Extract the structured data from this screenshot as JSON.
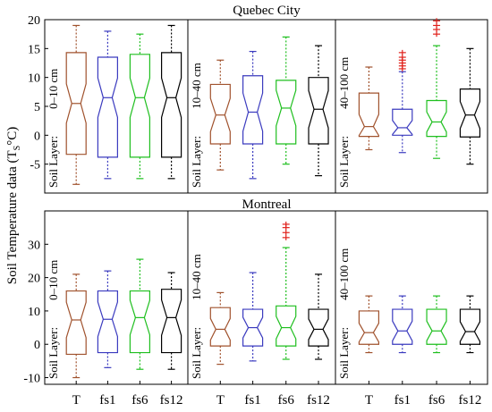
{
  "figure": {
    "ylabel": "Soil Temperature data (T",
    "ylabel_sub": "S",
    "ylabel_unit": "°C)",
    "categories": [
      "T",
      "fs1",
      "fs6",
      "fs12"
    ],
    "colors": {
      "T": "#a0522d",
      "fs1": "#3b3bbf",
      "fs6": "#1fbf1f",
      "fs12": "#000000",
      "outlier": "#e0201a"
    }
  },
  "chart_data": [
    {
      "type": "boxplot",
      "city": "Quebec City",
      "layer_prefix": "Soil Layer:",
      "layer": "0–10 cm",
      "ylim": [
        -10,
        20
      ],
      "yticks": [
        -5,
        0,
        5,
        10,
        15,
        20
      ],
      "series": [
        {
          "name": "T",
          "whisker_low": -8.5,
          "q1": -3.3,
          "median": 5.5,
          "q3": 14.3,
          "whisker_high": 19,
          "outliers": []
        },
        {
          "name": "fs1",
          "whisker_low": -7.5,
          "q1": -3.8,
          "median": 6.5,
          "q3": 13.5,
          "whisker_high": 18,
          "outliers": []
        },
        {
          "name": "fs6",
          "whisker_low": -7.5,
          "q1": -3.8,
          "median": 6.5,
          "q3": 14,
          "whisker_high": 17.5,
          "outliers": []
        },
        {
          "name": "fs12",
          "whisker_low": -7.5,
          "q1": -3.8,
          "median": 6.5,
          "q3": 14.3,
          "whisker_high": 19,
          "outliers": []
        }
      ]
    },
    {
      "type": "boxplot",
      "city": "Quebec City",
      "layer_prefix": "Soil Layer:",
      "layer": "10–40 cm",
      "ylim": [
        -10,
        20
      ],
      "yticks": [
        -5,
        0,
        5,
        10,
        15,
        20
      ],
      "series": [
        {
          "name": "T",
          "whisker_low": -6,
          "q1": -1.5,
          "median": 3.5,
          "q3": 8.8,
          "whisker_high": 13,
          "outliers": []
        },
        {
          "name": "fs1",
          "whisker_low": -7.5,
          "q1": -1.5,
          "median": 4,
          "q3": 10.3,
          "whisker_high": 14.5,
          "outliers": []
        },
        {
          "name": "fs6",
          "whisker_low": -5,
          "q1": -1.5,
          "median": 4.7,
          "q3": 9.5,
          "whisker_high": 17,
          "outliers": []
        },
        {
          "name": "fs12",
          "whisker_low": -7,
          "q1": -1.5,
          "median": 4.5,
          "q3": 10,
          "whisker_high": 15.5,
          "outliers": []
        }
      ]
    },
    {
      "type": "boxplot",
      "city": "Quebec City",
      "layer_prefix": "Soil Layer:",
      "layer": "40–100 cm",
      "ylim": [
        -10,
        20
      ],
      "yticks": [
        -5,
        0,
        5,
        10,
        15,
        20
      ],
      "series": [
        {
          "name": "T",
          "whisker_low": -2.5,
          "q1": -0.2,
          "median": 1.5,
          "q3": 7.3,
          "whisker_high": 11.8,
          "outliers": []
        },
        {
          "name": "fs1",
          "whisker_low": -3,
          "q1": 0,
          "median": 1.3,
          "q3": 4.5,
          "whisker_high": 11,
          "outliers": [
            11.5,
            12,
            12.5,
            13,
            13.5,
            14.3
          ]
        },
        {
          "name": "fs6",
          "whisker_low": -4,
          "q1": -0.2,
          "median": 2.3,
          "q3": 6,
          "whisker_high": 15.5,
          "outliers": [
            17.5,
            18.3,
            19,
            19.8
          ]
        },
        {
          "name": "fs12",
          "whisker_low": -5,
          "q1": -0.3,
          "median": 3.5,
          "q3": 8,
          "whisker_high": 15,
          "outliers": []
        }
      ]
    },
    {
      "type": "boxplot",
      "city": "Montreal",
      "layer_prefix": "Soil Layer:",
      "layer": "0–10 cm",
      "ylim": [
        -12,
        40
      ],
      "yticks": [
        -10,
        0,
        10,
        20,
        30
      ],
      "series": [
        {
          "name": "T",
          "whisker_low": -10,
          "q1": -3,
          "median": 7.3,
          "q3": 16,
          "whisker_high": 21,
          "outliers": []
        },
        {
          "name": "fs1",
          "whisker_low": -7,
          "q1": -2.5,
          "median": 7.5,
          "q3": 16,
          "whisker_high": 22,
          "outliers": []
        },
        {
          "name": "fs6",
          "whisker_low": -7.5,
          "q1": -2.5,
          "median": 8,
          "q3": 16,
          "whisker_high": 25.5,
          "outliers": []
        },
        {
          "name": "fs12",
          "whisker_low": -7.5,
          "q1": -2.5,
          "median": 8,
          "q3": 16.5,
          "whisker_high": 21.5,
          "outliers": []
        }
      ]
    },
    {
      "type": "boxplot",
      "city": "Montreal",
      "layer_prefix": "Soil Layer:",
      "layer": "10–40 cm",
      "ylim": [
        -12,
        40
      ],
      "yticks": [
        -10,
        0,
        10,
        20,
        30
      ],
      "series": [
        {
          "name": "T",
          "whisker_low": -6,
          "q1": -0.5,
          "median": 4.5,
          "q3": 11,
          "whisker_high": 15.5,
          "outliers": []
        },
        {
          "name": "fs1",
          "whisker_low": -5,
          "q1": -0.5,
          "median": 5,
          "q3": 10.5,
          "whisker_high": 21.5,
          "outliers": []
        },
        {
          "name": "fs6",
          "whisker_low": -4.5,
          "q1": -0.5,
          "median": 5,
          "q3": 11.5,
          "whisker_high": 29,
          "outliers": [
            32,
            33.5,
            35,
            36
          ]
        },
        {
          "name": "fs12",
          "whisker_low": -4.5,
          "q1": -0.5,
          "median": 4.5,
          "q3": 10.5,
          "whisker_high": 21,
          "outliers": []
        }
      ]
    },
    {
      "type": "boxplot",
      "city": "Montreal",
      "layer_prefix": "Soil Layer:",
      "layer": "40–100 cm",
      "ylim": [
        -12,
        40
      ],
      "yticks": [
        -10,
        0,
        10,
        20,
        30
      ],
      "series": [
        {
          "name": "T",
          "whisker_low": -2.5,
          "q1": 0,
          "median": 3.5,
          "q3": 10,
          "whisker_high": 14.5,
          "outliers": []
        },
        {
          "name": "fs1",
          "whisker_low": -2.5,
          "q1": 0,
          "median": 4,
          "q3": 10.5,
          "whisker_high": 14.5,
          "outliers": []
        },
        {
          "name": "fs6",
          "whisker_low": -2.5,
          "q1": 0,
          "median": 4,
          "q3": 10.5,
          "whisker_high": 14.5,
          "outliers": []
        },
        {
          "name": "fs12",
          "whisker_low": -2.5,
          "q1": 0,
          "median": 3.8,
          "q3": 10.5,
          "whisker_high": 14.5,
          "outliers": []
        }
      ]
    }
  ]
}
